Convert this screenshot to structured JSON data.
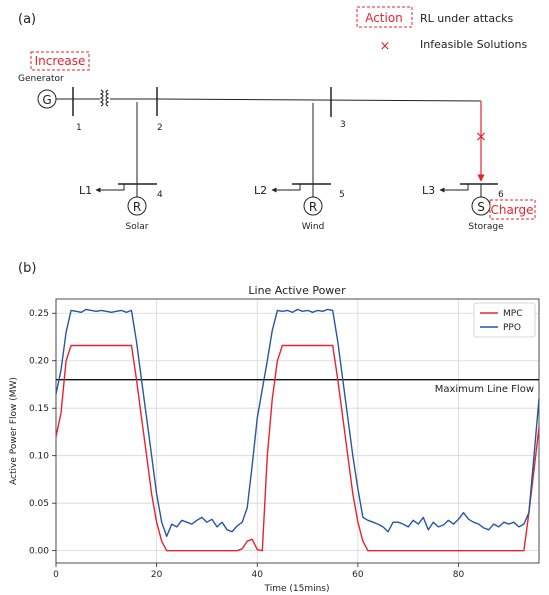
{
  "diagram": {
    "panel_label": "(a)",
    "legend": {
      "action_box": "Action",
      "action_text": "RL under attacks",
      "x_text": "Infeasible Solutions"
    },
    "generator": {
      "label": "Generator",
      "symbol": "G",
      "action": "Increase"
    },
    "buses": [
      "1",
      "2",
      "3",
      "4",
      "5",
      "6"
    ],
    "loads": [
      "L1",
      "L2",
      "L3"
    ],
    "solar": {
      "symbol": "R",
      "label": "Solar"
    },
    "wind": {
      "symbol": "R",
      "label": "Wind"
    },
    "storage": {
      "symbol": "S",
      "label": "Storage",
      "action": "Charge"
    },
    "colors": {
      "action": "#e8232a",
      "line": "#222222"
    }
  },
  "chart_data": {
    "type": "line",
    "panel_label": "(b)",
    "title": "Line Active Power",
    "xlabel": "Time (15mins)",
    "ylabel": "Active Power Flow (MW)",
    "xlim": [
      0,
      96
    ],
    "ylim": [
      -0.013,
      0.265
    ],
    "xticks": [
      "0",
      "20",
      "40",
      "60",
      "80"
    ],
    "yticks": [
      "0.00",
      "0.05",
      "0.10",
      "0.15",
      "0.20",
      "0.25"
    ],
    "grid": true,
    "legend_position": "top-right",
    "reference_line": {
      "label": "Maximum Line Flow",
      "y": 0.18,
      "color": "#111111"
    },
    "series": [
      {
        "name": "MPC",
        "color": "#e8232a",
        "x": [
          0,
          1,
          2,
          3,
          15,
          16,
          17,
          18,
          19,
          20,
          21,
          22,
          23,
          24,
          25,
          26,
          27,
          28,
          29,
          30,
          31,
          32,
          33,
          34,
          35,
          36,
          37,
          38,
          39,
          40,
          41,
          42,
          43,
          44,
          45,
          55,
          56,
          57,
          58,
          59,
          60,
          61,
          62,
          63,
          64,
          65,
          66,
          67,
          68,
          69,
          70,
          71,
          72,
          73,
          74,
          75,
          76,
          77,
          78,
          79,
          80,
          81,
          82,
          83,
          84,
          85,
          86,
          87,
          88,
          89,
          90,
          91,
          92,
          93,
          94,
          95,
          96
        ],
        "values": [
          0.12,
          0.145,
          0.2,
          0.216,
          0.216,
          0.18,
          0.14,
          0.1,
          0.06,
          0.03,
          0.01,
          0.0,
          0.0,
          0.0,
          0.0,
          0.0,
          0.0,
          0.0,
          0.0,
          0.0,
          0.0,
          0.0,
          0.0,
          0.0,
          0.0,
          0.0,
          0.002,
          0.01,
          0.012,
          0.001,
          0.0,
          0.1,
          0.16,
          0.2,
          0.216,
          0.216,
          0.18,
          0.14,
          0.1,
          0.06,
          0.03,
          0.01,
          0.0,
          0.0,
          0.0,
          0.0,
          0.0,
          0.0,
          0.0,
          0.0,
          0.0,
          0.0,
          0.0,
          0.0,
          0.0,
          0.0,
          0.0,
          0.0,
          0.0,
          0.0,
          0.0,
          0.0,
          0.0,
          0.0,
          0.0,
          0.0,
          0.0,
          0.0,
          0.0,
          0.0,
          0.0,
          0.0,
          0.0,
          0.0,
          0.04,
          0.085,
          0.13
        ]
      },
      {
        "name": "PPO",
        "color": "#2656a5",
        "x": [
          0,
          1,
          2,
          3,
          4,
          5,
          6,
          7,
          8,
          9,
          10,
          11,
          12,
          13,
          14,
          15,
          16,
          17,
          18,
          19,
          20,
          21,
          22,
          23,
          24,
          25,
          26,
          27,
          28,
          29,
          30,
          31,
          32,
          33,
          34,
          35,
          36,
          37,
          38,
          39,
          40,
          41,
          42,
          43,
          44,
          45,
          46,
          47,
          48,
          49,
          50,
          51,
          52,
          53,
          54,
          55,
          56,
          57,
          58,
          59,
          60,
          61,
          62,
          63,
          64,
          65,
          66,
          67,
          68,
          69,
          70,
          71,
          72,
          73,
          74,
          75,
          76,
          77,
          78,
          79,
          80,
          81,
          82,
          83,
          84,
          85,
          86,
          87,
          88,
          89,
          90,
          91,
          92,
          93,
          94,
          95,
          96
        ],
        "values": [
          0.165,
          0.19,
          0.23,
          0.253,
          0.252,
          0.251,
          0.254,
          0.253,
          0.252,
          0.253,
          0.252,
          0.251,
          0.252,
          0.253,
          0.251,
          0.253,
          0.22,
          0.18,
          0.14,
          0.1,
          0.06,
          0.03,
          0.015,
          0.028,
          0.025,
          0.032,
          0.03,
          0.028,
          0.032,
          0.035,
          0.03,
          0.033,
          0.025,
          0.03,
          0.022,
          0.02,
          0.026,
          0.03,
          0.045,
          0.09,
          0.14,
          0.17,
          0.2,
          0.232,
          0.253,
          0.252,
          0.253,
          0.251,
          0.254,
          0.252,
          0.253,
          0.251,
          0.253,
          0.252,
          0.254,
          0.253,
          0.22,
          0.18,
          0.14,
          0.1,
          0.065,
          0.035,
          0.032,
          0.03,
          0.028,
          0.025,
          0.02,
          0.03,
          0.03,
          0.028,
          0.025,
          0.032,
          0.028,
          0.035,
          0.022,
          0.03,
          0.025,
          0.027,
          0.032,
          0.028,
          0.033,
          0.04,
          0.033,
          0.03,
          0.028,
          0.024,
          0.022,
          0.028,
          0.025,
          0.03,
          0.028,
          0.03,
          0.025,
          0.028,
          0.04,
          0.1,
          0.16
        ]
      }
    ]
  }
}
